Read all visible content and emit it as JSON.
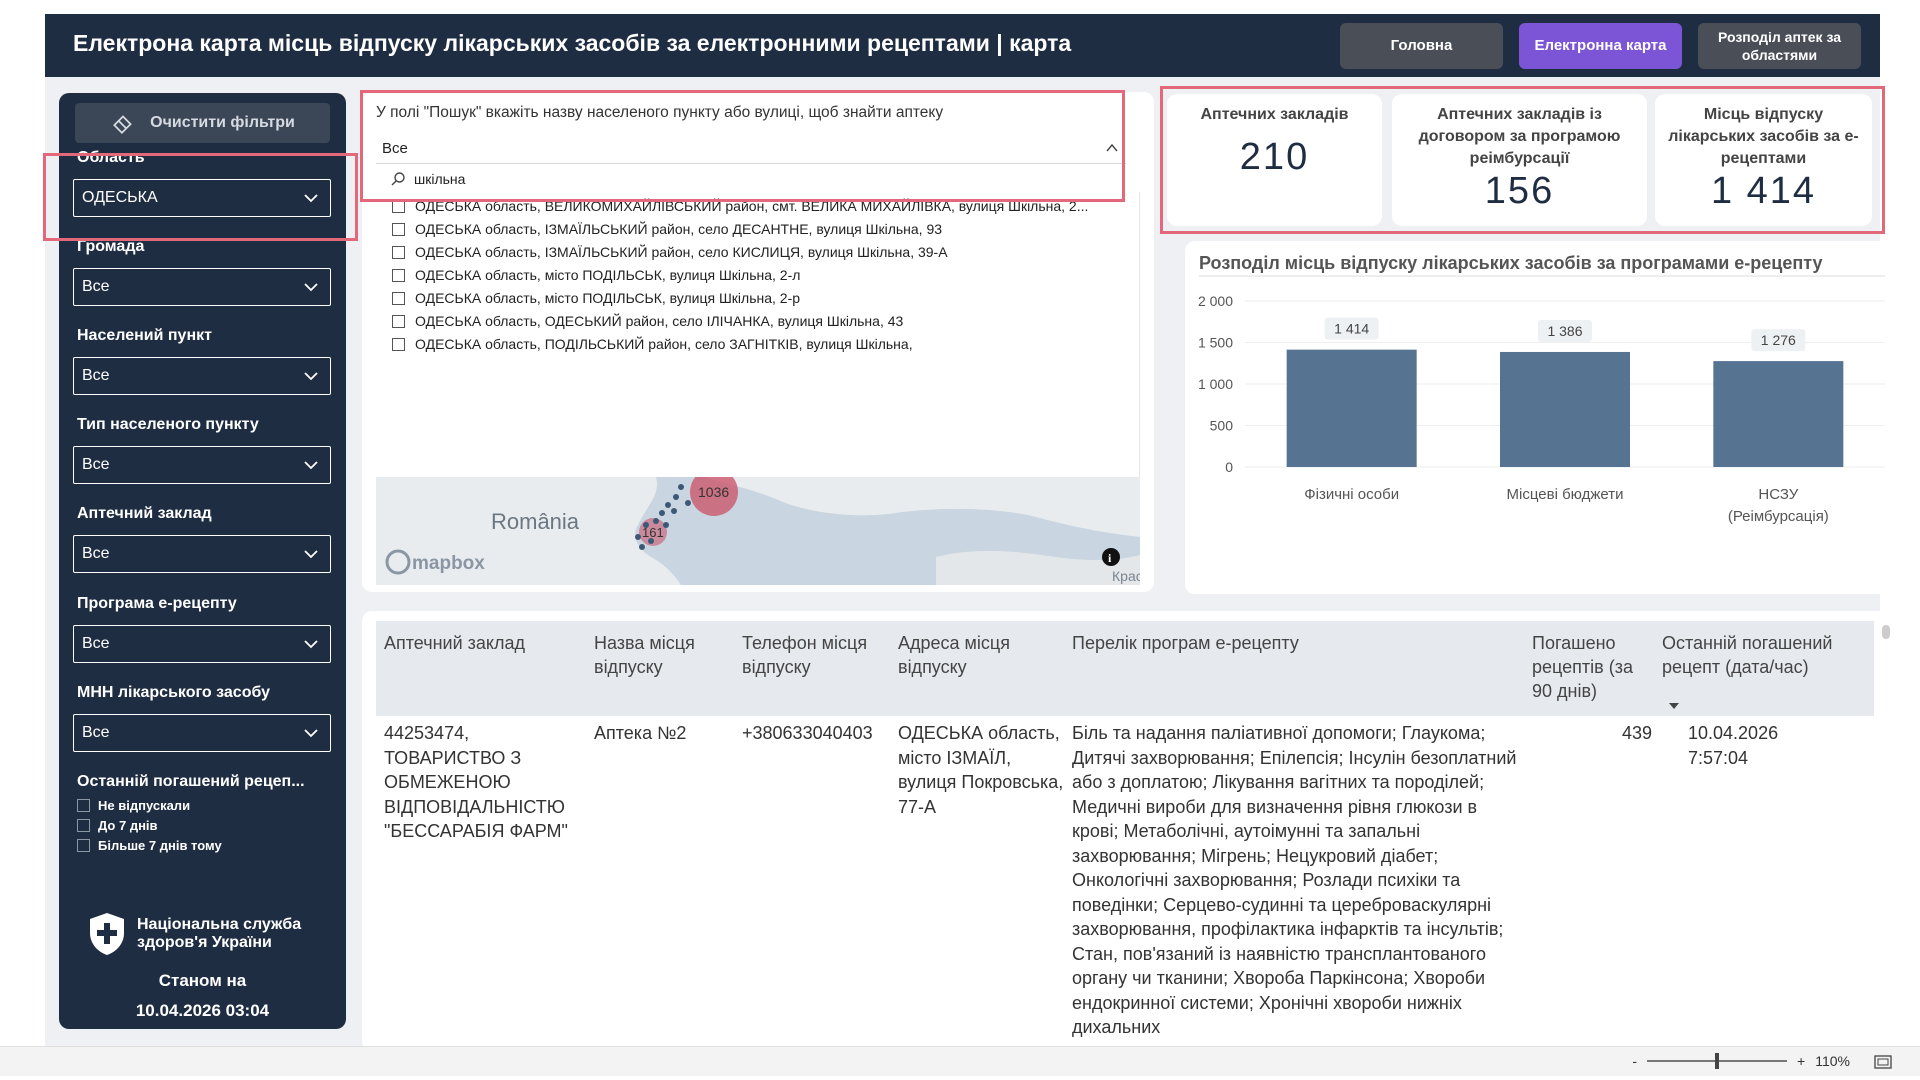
{
  "header": {
    "title": "Електрона карта місць відпуску лікарських засобів за електронними рецептами | карта",
    "nav": [
      "Головна",
      "Електронна карта",
      "Розподіл аптек за областями"
    ]
  },
  "sidebar": {
    "clear_filters": "Очистити фільтри",
    "filters": [
      {
        "label": "Область",
        "value": "ОДЕСЬКА"
      },
      {
        "label": "Громада",
        "value": "Все"
      },
      {
        "label": "Населений пункт",
        "value": "Все"
      },
      {
        "label": "Тип населеного пункту",
        "value": "Все"
      },
      {
        "label": "Аптечний заклад",
        "value": "Все"
      },
      {
        "label": "Програма е-рецепту",
        "value": "Все"
      },
      {
        "label": "МНН лікарського засобу",
        "value": "Все"
      }
    ],
    "last_recipe_label": "Останній погашений рецеп...",
    "last_recipe_options": [
      "Не відпускали",
      "До 7 днів",
      "Більше 7 днів тому"
    ],
    "org_name": "Національна служба здоров'я України",
    "as_of_label": "Станом на",
    "as_of_date": "10.04.2026 03:04"
  },
  "search": {
    "hint": "У полі \"Пошук\" вкажіть назву населеного пункту або вулиці, щоб знайти аптеку",
    "selected": "Все",
    "query": "шкільна",
    "options": [
      "ОДЕСЬКА область, ВЕЛИКОМИХАЙЛІВСЬКИЙ район, смт. ВЕЛИКА МИХАЙЛІВКА, вулиця Шкільна, 2...",
      "ОДЕСЬКА область, ІЗМАЇЛЬСЬКИЙ район, село ДЕСАНТНЕ, вулиця Шкільна, 93",
      "ОДЕСЬКА область, ІЗМАЇЛЬСЬКИЙ район, село КИСЛИЦЯ, вулиця Шкільна, 39-А",
      "ОДЕСЬКА область, місто ПОДІЛЬСЬК, вулиця Шкільна, 2-л",
      "ОДЕСЬКА область, місто ПОДІЛЬСЬК, вулиця Шкільна, 2-р",
      "ОДЕСЬКА область, ОДЕСЬКИЙ район, село ІЛІЧАНКА, вулиця Шкільна, 43",
      "ОДЕСЬКА область, ПОДІЛЬСЬКИЙ район, село ЗАГНІТКІВ, вулиця Шкільна,"
    ]
  },
  "map": {
    "country_label": "România",
    "cluster_big": "1036",
    "cluster_small": "161",
    "attribution": "mapbox",
    "edge_label": "Крас",
    "water_color": "#c9d5e0",
    "land_color": "#e9ecef",
    "cluster_color": "#c94f64"
  },
  "kpis": [
    {
      "label": "Аптечних закладів",
      "value": "210"
    },
    {
      "label": "Аптечних закладів із договором за програмою реімбурсації",
      "value": "156"
    },
    {
      "label": "Місць відпуску лікарських засобів за е-рецептами",
      "value": "1 414"
    }
  ],
  "chart_data": {
    "type": "bar",
    "title": "Розподіл місць відпуску лікарських засобів за програмами е-рецепту",
    "categories": [
      "Фізичні особи",
      "Місцеві бюджети",
      "НСЗУ (Реімбурсація)"
    ],
    "values": [
      1414,
      1386,
      1276
    ],
    "value_labels": [
      "1 414",
      "1 386",
      "1 276"
    ],
    "ylim": [
      0,
      2000
    ],
    "yticks": [
      "0",
      "500",
      "1 000",
      "1 500",
      "2 000"
    ],
    "bar_color": "#567491",
    "grid": true
  },
  "table": {
    "headers": [
      "Аптечний заклад",
      "Назва місця відпуску",
      "Телефон місця відпуску",
      "Адреса місця відпуску",
      "Перелік програм е-рецепту",
      "Погашено рецептів (за 90 днів)",
      "Останній погашений рецепт (дата/час)"
    ],
    "rows": [
      {
        "pharmacy": "44253474, ТОВАРИСТВО З ОБМЕЖЕНОЮ ВІДПОВІДАЛЬНІСТЮ \"БЕССАРАБІЯ ФАРМ\"",
        "name": "Аптека №2",
        "phone": "+380633040403",
        "address": "ОДЕСЬКА область, місто ІЗМАЇЛ, вулиця Покровська, 77-А",
        "programs": "Біль та надання паліативної допомоги; Глаукома; Дитячі захворювання; Епілепсія; Інсулін безоплатний або з доплатою; Лікування вагітних та породілей; Медичні вироби для визначення рівня глюкози в крові; Метаболічні, аутоімунні та запальні захворювання; Мігрень; Нецукровий діабет; Онкологічні захворювання; Розлади психіки та поведінки; Серцево-судинні та цереброваскулярні захворювання, профілактика інфарктів та інсультів; Стан, пов'язаний із наявністю трансплантованого органу чи тканини; Хвороба Паркінсона; Хвороби ендокринної системи; Хронічні хвороби нижніх дихальних",
        "redeemed": "439",
        "last": "10.04.2026 7:57:04"
      }
    ]
  },
  "statusbar": {
    "minus": "-",
    "plus": "+",
    "zoom": "110%"
  }
}
